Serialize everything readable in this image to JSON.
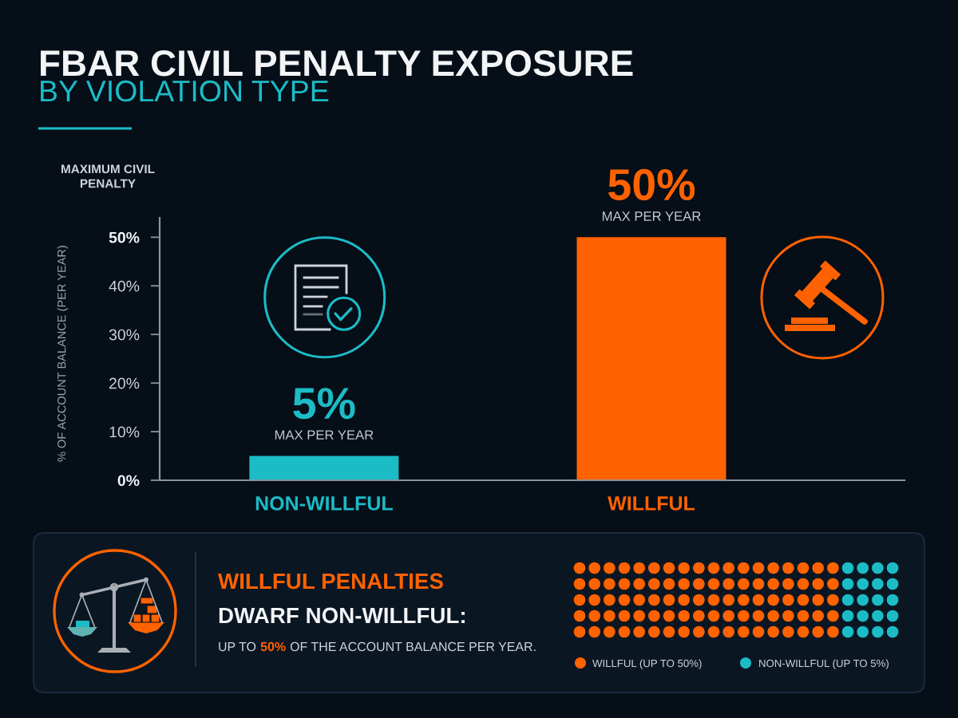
{
  "chart_data": {
    "type": "bar",
    "title": "FBAR CIVIL PENALTY EXPOSURE",
    "subtitle": "BY VIOLATION TYPE",
    "ylabel": "% OF ACCOUNT BALANCE (PER YEAR)",
    "categories": [
      "NON-WILLFUL",
      "WILLFUL"
    ],
    "values": [
      5,
      50
    ],
    "colors": [
      "#1bbcc6",
      "#ff6200"
    ],
    "value_labels": [
      "5%",
      "50%"
    ],
    "ylim": [
      0,
      54
    ],
    "yticks": [
      {
        "value": 0,
        "label": "0%"
      },
      {
        "value": 10,
        "label": "10%"
      },
      {
        "value": 20,
        "label": "20%"
      },
      {
        "value": 30,
        "label": "30%"
      },
      {
        "value": 40,
        "label": "40%"
      },
      {
        "value": 50,
        "label": "50%"
      }
    ],
    "annotations": [
      "MAXIMUM CIVIL\nPENALTY",
      {
        "text": "MAX PER YEAR",
        "x": "NON-WILLFUL",
        "y": 5
      },
      {
        "text": "MAX PER YEAR",
        "x": "WILLFUL",
        "y": 50
      },
      "WILLFUL PENALTIES",
      "DWARF NON-WILLFUL:",
      "UP TO",
      "50%",
      "OF THE ACCOUNT BALANCE PER YEAR.",
      "WILLFUL (UP TO 50%)",
      "NON-WILLFUL (UP TO 5%)"
    ]
  }
}
